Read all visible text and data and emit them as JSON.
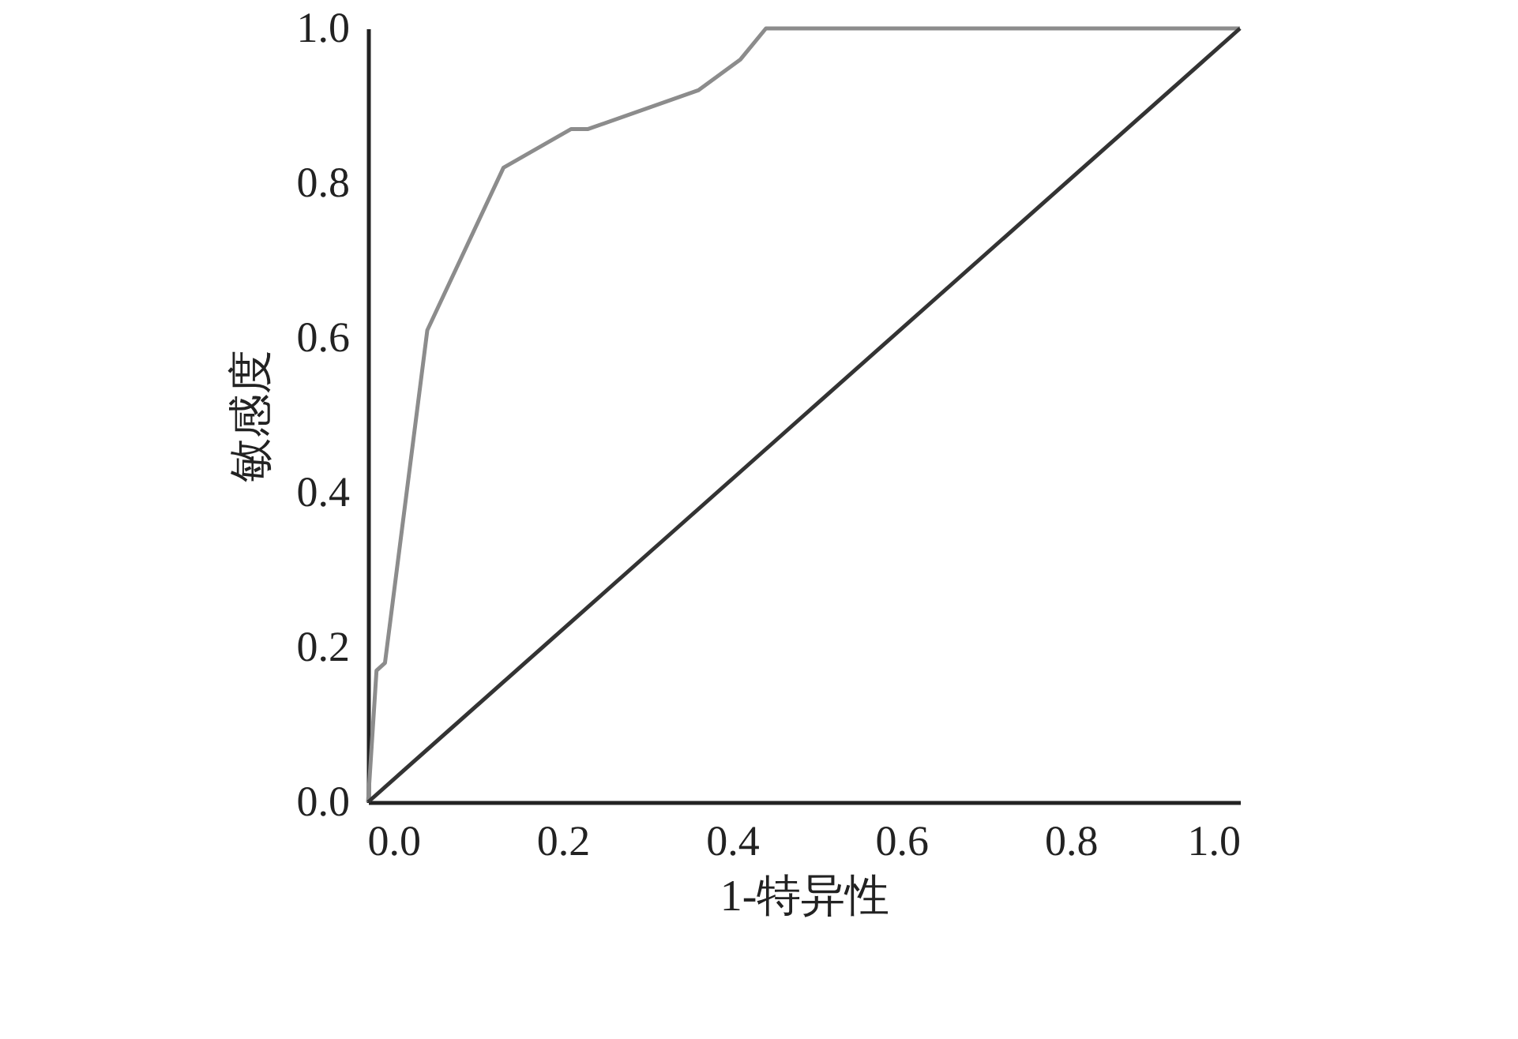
{
  "chart_data": {
    "type": "line",
    "xlabel": "1-特异性",
    "ylabel": "敏感度",
    "xlim": [
      -0.03,
      1.0
    ],
    "ylim": [
      0,
      1.0
    ],
    "xticks": [
      {
        "value": 0,
        "label": "0.0"
      },
      {
        "value": 0.2,
        "label": "0.2"
      },
      {
        "value": 0.4,
        "label": "0.4"
      },
      {
        "value": 0.6,
        "label": "0.6"
      },
      {
        "value": 0.8,
        "label": "0.8"
      },
      {
        "value": 1,
        "label": "1.0"
      }
    ],
    "yticks": [
      {
        "value": 0,
        "label": "0.0"
      },
      {
        "value": 0.2,
        "label": "0.2"
      },
      {
        "value": 0.4,
        "label": "0.4"
      },
      {
        "value": 0.6,
        "label": "0.6"
      },
      {
        "value": 0.8,
        "label": "0.8"
      },
      {
        "value": 1,
        "label": "1.0"
      }
    ],
    "grid": false,
    "marker": "none",
    "line_style": "solid",
    "series": [
      {
        "color": "#8c8c8c",
        "x": [
          -0.03,
          -0.02,
          -0.01,
          0.04,
          0.13,
          0.21,
          0.23,
          0.36,
          0.41,
          0.44,
          1.0
        ],
        "values": [
          0,
          0.17,
          0.18,
          0.61,
          0.82,
          0.87,
          0.87,
          0.92,
          0.96,
          1.0,
          1.0
        ]
      },
      {
        "color": "#333333",
        "x": [
          -0.03,
          1.0
        ],
        "values": [
          0,
          1.0
        ]
      }
    ]
  }
}
